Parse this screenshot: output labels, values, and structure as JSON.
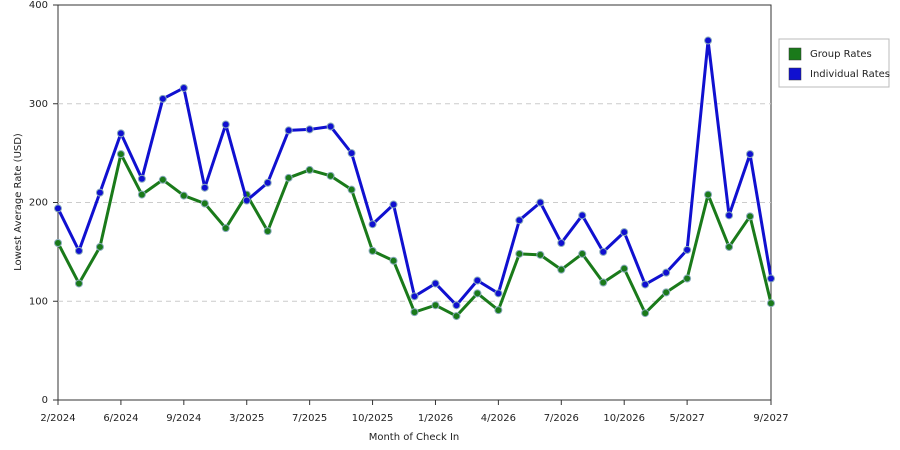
{
  "chart_data": {
    "type": "line",
    "x_label": "Month of Check In",
    "y_label": "Lowest Average Rate (USD)",
    "categories": [
      "2/2024",
      null,
      null,
      "6/2024",
      null,
      null,
      "9/2024",
      null,
      null,
      "3/2025",
      null,
      null,
      "7/2025",
      null,
      null,
      "10/2025",
      null,
      null,
      "1/2026",
      null,
      null,
      "4/2026",
      null,
      null,
      "7/2026",
      null,
      null,
      "10/2026",
      null,
      null,
      "5/2027",
      null,
      null,
      null,
      "9/2027"
    ],
    "series": [
      {
        "name": "Group Rates",
        "color": "#1a7a1a",
        "values": [
          159,
          118,
          155,
          249,
          208,
          223,
          207,
          199,
          174,
          208,
          171,
          225,
          233,
          227,
          213,
          151,
          141,
          89,
          96,
          85,
          108,
          91,
          148,
          147,
          132,
          148,
          119,
          133,
          88,
          109,
          123,
          208,
          155,
          186,
          98
        ]
      },
      {
        "name": "Individual Rates",
        "color": "#1010d0",
        "values": [
          194,
          151,
          210,
          270,
          224,
          305,
          316,
          215,
          279,
          202,
          220,
          273,
          274,
          277,
          250,
          178,
          198,
          105,
          118,
          96,
          121,
          108,
          182,
          200,
          159,
          187,
          150,
          170,
          117,
          129,
          152,
          364,
          187,
          249,
          123
        ]
      }
    ],
    "ylim": [
      0,
      400
    ],
    "yticks": [
      0,
      100,
      200,
      300,
      400
    ],
    "grid": true,
    "legend": "right"
  }
}
